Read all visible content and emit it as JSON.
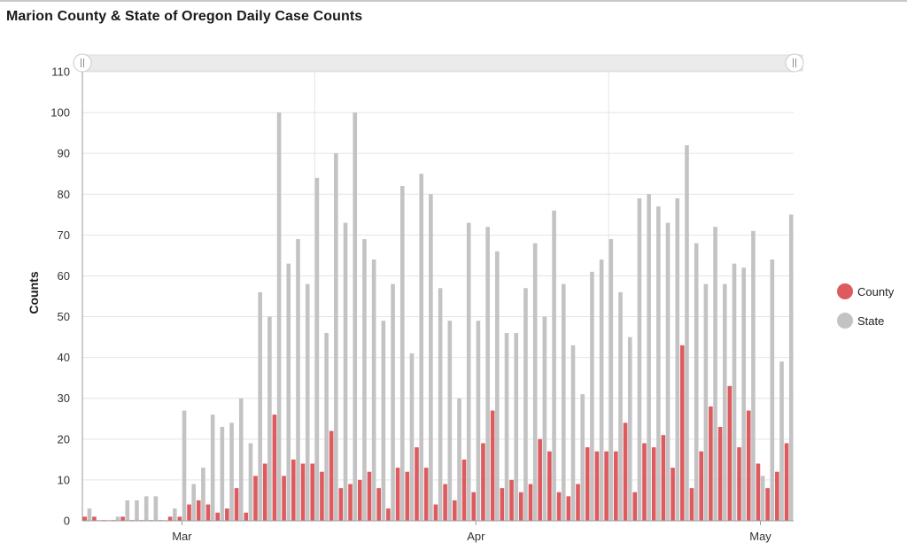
{
  "page": {
    "title": "Marion County & State of Oregon Daily Case Counts"
  },
  "colors": {
    "county": "#dd5a5f",
    "state": "#c3c3c3",
    "grid": "#e4e4e4",
    "slider_track": "#ebebeb"
  },
  "chart_data": {
    "type": "bar",
    "title": "Marion County & State of Oregon Daily Case Counts",
    "ylabel": "Counts",
    "xlabel": "",
    "ylim": [
      0,
      110
    ],
    "yticks": [
      0,
      10,
      20,
      30,
      40,
      50,
      60,
      70,
      80,
      90,
      100,
      110
    ],
    "grid": true,
    "legend_position": "right",
    "x_start_date": "2020-02-20",
    "x_end_date": "2020-05-05",
    "x_tick_labels": [
      {
        "label": "Mar",
        "date": "2020-03-01"
      },
      {
        "label": "Apr",
        "date": "2020-04-01"
      },
      {
        "label": "May",
        "date": "2020-05-01"
      }
    ],
    "month_gridlines": [
      "2020-03-15",
      "2020-04-15"
    ],
    "series": [
      {
        "name": "County",
        "values": [
          1,
          1,
          0,
          0,
          1,
          0,
          0,
          0,
          0,
          1,
          1,
          4,
          5,
          4,
          2,
          3,
          8,
          2,
          11,
          14,
          26,
          11,
          15,
          14,
          14,
          12,
          22,
          8,
          9,
          10,
          12,
          8,
          3,
          13,
          12,
          18,
          13,
          4,
          9,
          5,
          15,
          7,
          19,
          27,
          8,
          10,
          7,
          9,
          20,
          17,
          7,
          6,
          9,
          18,
          17,
          17,
          17,
          24,
          7,
          19,
          18,
          21,
          13,
          43,
          8,
          17,
          28,
          23,
          33,
          18,
          27,
          14,
          8,
          12,
          19
        ]
      },
      {
        "name": "State",
        "values": [
          3,
          0,
          0,
          1,
          5,
          5,
          6,
          6,
          0,
          3,
          27,
          9,
          13,
          26,
          23,
          24,
          30,
          19,
          56,
          50,
          100,
          63,
          69,
          58,
          84,
          46,
          90,
          73,
          100,
          69,
          64,
          49,
          58,
          82,
          41,
          85,
          80,
          57,
          49,
          30,
          73,
          49,
          72,
          66,
          46,
          46,
          57,
          68,
          50,
          76,
          58,
          43,
          31,
          61,
          64,
          69,
          56,
          45,
          79,
          80,
          77,
          73,
          79,
          92,
          68,
          58,
          72,
          58,
          63,
          62,
          71,
          11,
          64,
          39,
          75
        ]
      }
    ]
  },
  "legend": {
    "items": [
      {
        "name": "County"
      },
      {
        "name": "State"
      }
    ]
  }
}
